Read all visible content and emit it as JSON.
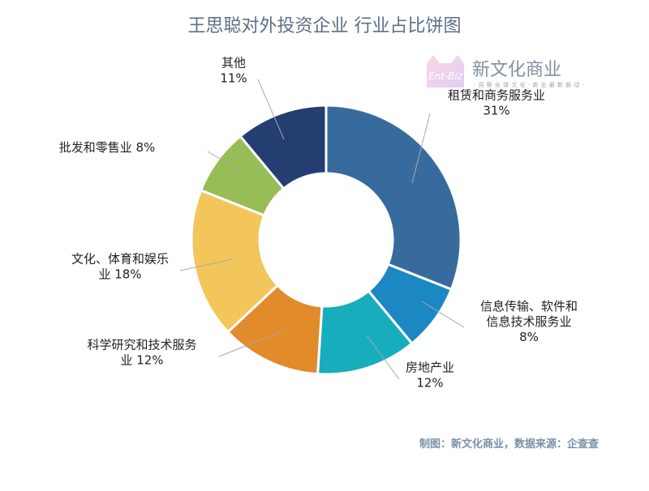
{
  "chart_data": {
    "type": "pie",
    "donut": true,
    "title": "王思聪对外投资企业 行业占比饼图",
    "slices": [
      {
        "label": "租赁和商务服务业",
        "value": 31,
        "pct_text": "31%",
        "color": "#386b9d"
      },
      {
        "label": "信息传输、软件和信息技术服务业",
        "label_lines": [
          "信息传输、软件和",
          "信息技术服务业"
        ],
        "value": 8,
        "pct_text": "8%",
        "color": "#1b87c3"
      },
      {
        "label": "房地产业",
        "value": 12,
        "pct_text": "12%",
        "color": "#17adbd"
      },
      {
        "label": "科学研究和技术服务业",
        "label_lines": [
          "科学研究和技术服务",
          "业"
        ],
        "value": 12,
        "pct_text": "12%",
        "color": "#e18b2b"
      },
      {
        "label": "文化、体育和娱乐业",
        "label_lines": [
          "文化、体育和娱乐",
          "业"
        ],
        "value": 18,
        "pct_text": "18%",
        "color": "#f2c65a"
      },
      {
        "label": "批发和零售业",
        "value": 8,
        "pct_text": "8%",
        "color": "#97bd56"
      },
      {
        "label": "其他",
        "value": 11,
        "pct_text": "11%",
        "color": "#253e72"
      }
    ],
    "legend": "none",
    "labels": "outside-with-leader-lines"
  },
  "watermark": {
    "brand": "新文化商业",
    "logo_text": "Ent-Biz",
    "tagline": "· 洞 察 全 球 文 化 · 商 业 最 新 脉 动 ·"
  },
  "footer": {
    "source": "制图：新文化商业，数据来源：企查查"
  }
}
